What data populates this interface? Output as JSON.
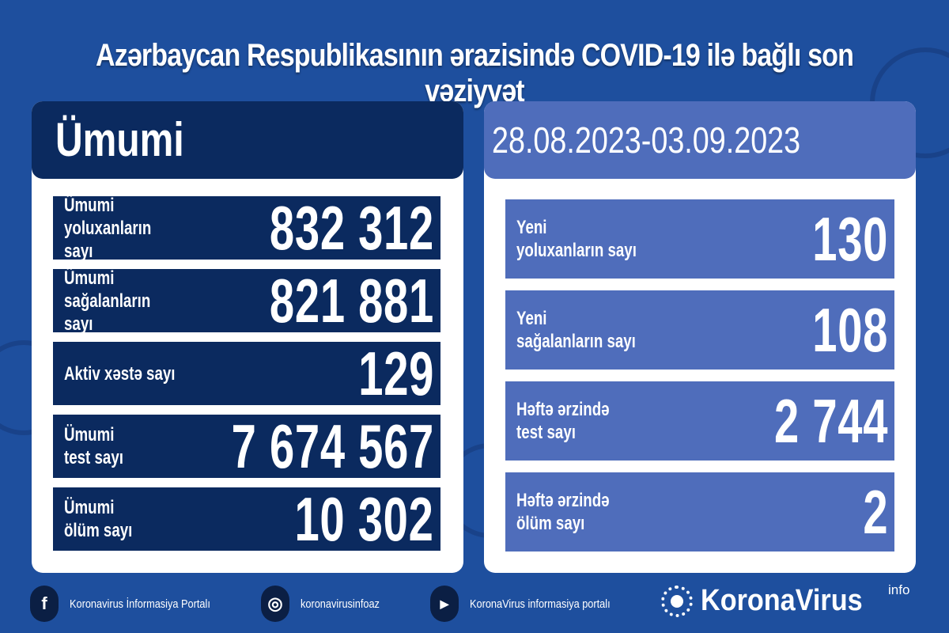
{
  "title": "Azərbaycan Respublikasının ərazisində COVID-19 ilə bağlı son vəziyyət",
  "left": {
    "header": "Ümumi",
    "rows": [
      {
        "label": "Ümumi\nyoluxanların sayı",
        "value": "832 312"
      },
      {
        "label": "Ümumi\nsağalanların sayı",
        "value": "821 881"
      },
      {
        "label": "Aktiv xəstə sayı",
        "value": "129"
      },
      {
        "label": "Ümumi\ntest sayı",
        "value": "7 674 567"
      },
      {
        "label": "Ümumi\nölüm sayı",
        "value": "10 302"
      }
    ]
  },
  "right": {
    "header": "28.08.2023-03.09.2023",
    "rows": [
      {
        "label": "Yeni\nyoluxanların sayı",
        "value": "130"
      },
      {
        "label": "Yeni\nsağalanların sayı",
        "value": "108"
      },
      {
        "label": "Həftə ərzində\ntest sayı",
        "value": "2 744"
      },
      {
        "label": "Həftə ərzində\nölüm sayı",
        "value": "2"
      }
    ]
  },
  "footer": {
    "links": [
      {
        "icon": "facebook-icon",
        "glyph": "f",
        "text": "Koronavirus İnformasiya Portalı"
      },
      {
        "icon": "instagram-icon",
        "glyph": "◎",
        "text": "koronavirusinfoaz"
      },
      {
        "icon": "youtube-icon",
        "glyph": "▶",
        "text": "KoronaVirus informasiya portalı"
      }
    ],
    "brand": "KoronaVirus",
    "brand_sup": "info"
  },
  "colors": {
    "background": "#1e4f9e",
    "navy": "#0b2a5f",
    "periwinkle": "#4f6dbb"
  }
}
